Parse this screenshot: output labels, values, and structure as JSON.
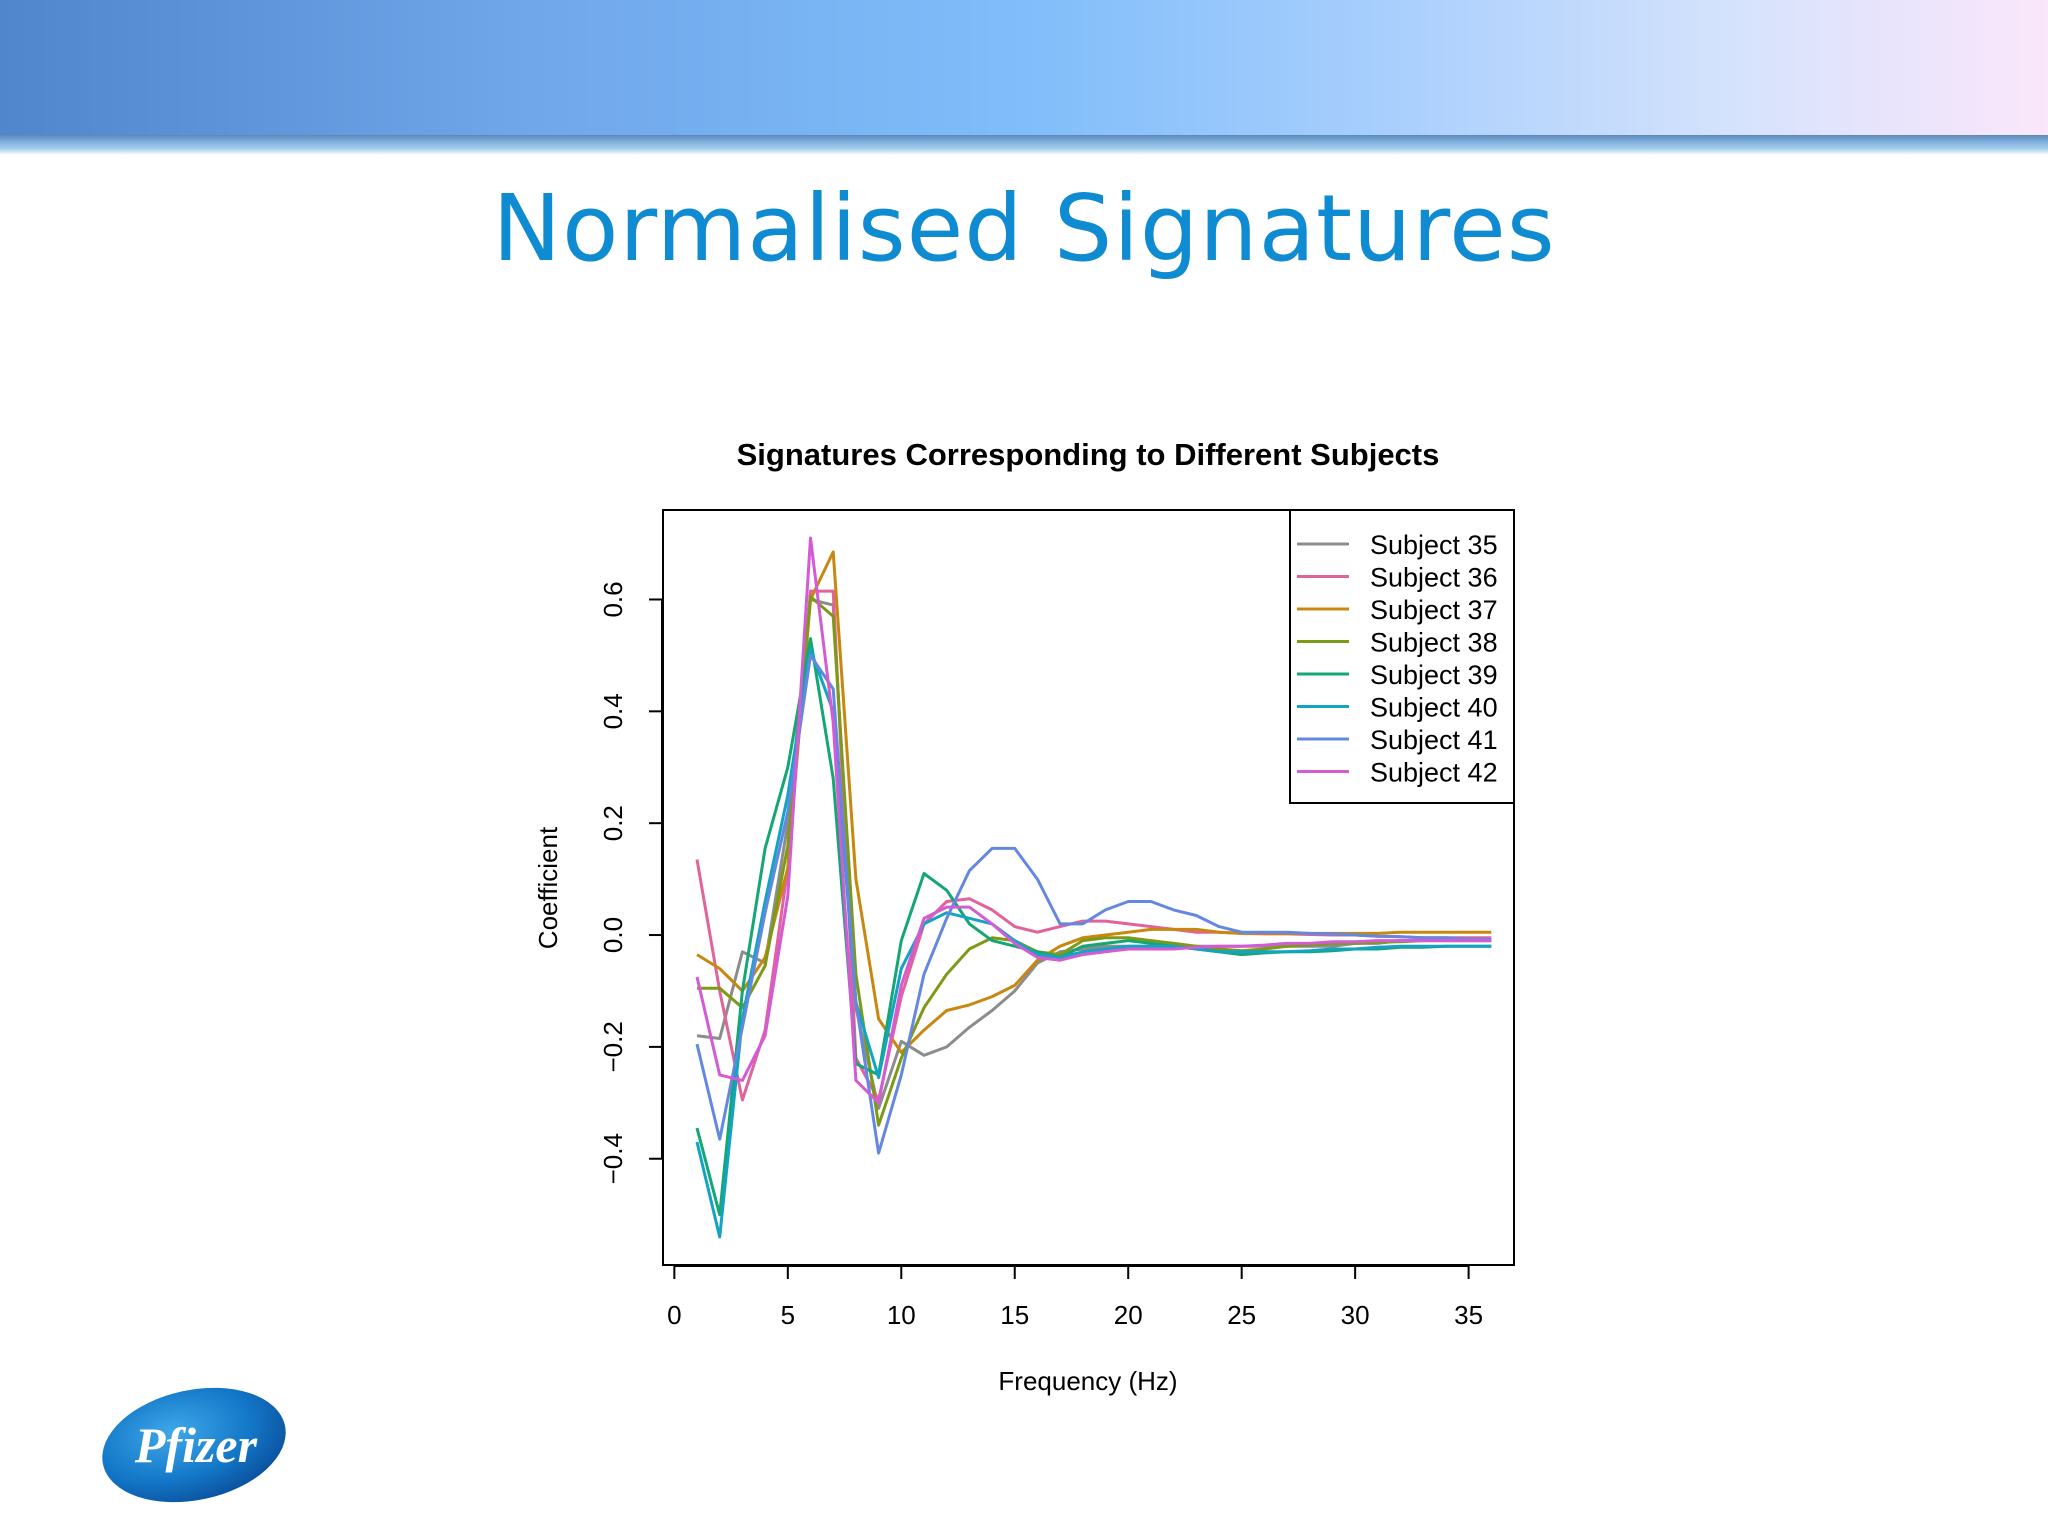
{
  "slide": {
    "title": "Normalised Signatures",
    "logo_text": "Pfizer"
  },
  "chart_data": {
    "type": "line",
    "title": "Signatures Corresponding to Different Subjects",
    "xlabel": "Frequency (Hz)",
    "ylabel": "Coefficient",
    "xlim": [
      -0.5,
      37
    ],
    "ylim": [
      -0.59,
      0.76
    ],
    "xticks": [
      "0",
      "5",
      "10",
      "15",
      "20",
      "25",
      "30",
      "35"
    ],
    "yticks": [
      "−0.4",
      "−0.2",
      "0.0",
      "0.2",
      "0.4",
      "0.6"
    ],
    "legend_position": "top-right",
    "x": [
      1,
      2,
      3,
      4,
      5,
      6,
      7,
      8,
      9,
      10,
      11,
      12,
      13,
      14,
      15,
      16,
      17,
      18,
      19,
      20,
      21,
      22,
      23,
      24,
      25,
      26,
      27,
      28,
      29,
      30,
      31,
      32,
      33,
      34,
      35,
      36
    ],
    "series": [
      {
        "name": "Subject 35",
        "color": "#8c8c8c",
        "values": [
          -0.18,
          -0.185,
          -0.03,
          -0.05,
          0.2,
          0.6,
          0.59,
          -0.13,
          -0.31,
          -0.19,
          -0.215,
          -0.2,
          -0.165,
          -0.135,
          -0.1,
          -0.05,
          -0.03,
          -0.025,
          -0.02,
          -0.02,
          -0.02,
          -0.02,
          -0.02,
          -0.02,
          -0.02,
          -0.02,
          -0.02,
          -0.02,
          -0.02,
          -0.015,
          -0.015,
          -0.01,
          -0.01,
          -0.01,
          -0.01,
          -0.01
        ]
      },
      {
        "name": "Subject 36",
        "color": "#e0639b",
        "values": [
          0.135,
          -0.1,
          -0.295,
          -0.17,
          0.12,
          0.615,
          0.615,
          -0.22,
          -0.295,
          -0.11,
          0.02,
          0.06,
          0.065,
          0.045,
          0.015,
          0.005,
          0.015,
          0.025,
          0.025,
          0.02,
          0.015,
          0.01,
          0.005,
          0.005,
          0.003,
          0.002,
          0.002,
          0.001,
          0.0,
          0.0,
          -0.002,
          -0.003,
          -0.005,
          -0.005,
          -0.005,
          -0.005
        ]
      },
      {
        "name": "Subject 37",
        "color": "#c8880f",
        "values": [
          -0.035,
          -0.06,
          -0.1,
          -0.04,
          0.12,
          0.6,
          0.685,
          0.1,
          -0.15,
          -0.21,
          -0.17,
          -0.135,
          -0.125,
          -0.11,
          -0.09,
          -0.045,
          -0.02,
          -0.005,
          0.0,
          0.005,
          0.01,
          0.01,
          0.01,
          0.005,
          0.003,
          0.003,
          0.003,
          0.003,
          0.003,
          0.003,
          0.003,
          0.005,
          0.005,
          0.005,
          0.005,
          0.005
        ]
      },
      {
        "name": "Subject 38",
        "color": "#7d9a17",
        "values": [
          -0.095,
          -0.095,
          -0.13,
          -0.055,
          0.16,
          0.605,
          0.57,
          -0.07,
          -0.34,
          -0.22,
          -0.13,
          -0.07,
          -0.025,
          -0.005,
          -0.01,
          -0.03,
          -0.035,
          -0.01,
          -0.005,
          -0.005,
          -0.01,
          -0.015,
          -0.02,
          -0.025,
          -0.028,
          -0.025,
          -0.02,
          -0.018,
          -0.015,
          -0.015,
          -0.013,
          -0.012,
          -0.01,
          -0.01,
          -0.01,
          -0.01
        ]
      },
      {
        "name": "Subject 39",
        "color": "#14a675",
        "values": [
          -0.345,
          -0.5,
          -0.1,
          0.155,
          0.3,
          0.53,
          0.28,
          -0.23,
          -0.25,
          -0.01,
          0.11,
          0.08,
          0.02,
          -0.01,
          -0.02,
          -0.03,
          -0.04,
          -0.02,
          -0.015,
          -0.01,
          -0.015,
          -0.02,
          -0.025,
          -0.03,
          -0.035,
          -0.032,
          -0.03,
          -0.03,
          -0.028,
          -0.025,
          -0.025,
          -0.022,
          -0.022,
          -0.02,
          -0.02,
          -0.02
        ]
      },
      {
        "name": "Subject 40",
        "color": "#12a4c2",
        "values": [
          -0.37,
          -0.54,
          -0.15,
          0.06,
          0.25,
          0.51,
          0.4,
          -0.12,
          -0.255,
          -0.06,
          0.02,
          0.04,
          0.03,
          0.02,
          -0.01,
          -0.035,
          -0.04,
          -0.03,
          -0.025,
          -0.02,
          -0.02,
          -0.02,
          -0.025,
          -0.03,
          -0.03,
          -0.03,
          -0.03,
          -0.028,
          -0.025,
          -0.025,
          -0.022,
          -0.02,
          -0.02,
          -0.02,
          -0.02,
          -0.02
        ]
      },
      {
        "name": "Subject 41",
        "color": "#6488e0",
        "values": [
          -0.195,
          -0.365,
          -0.165,
          0.04,
          0.22,
          0.5,
          0.44,
          -0.12,
          -0.39,
          -0.25,
          -0.07,
          0.03,
          0.115,
          0.155,
          0.155,
          0.1,
          0.02,
          0.02,
          0.045,
          0.06,
          0.06,
          0.045,
          0.035,
          0.015,
          0.005,
          0.005,
          0.005,
          0.003,
          0.002,
          0.0,
          -0.002,
          -0.003,
          -0.005,
          -0.005,
          -0.007,
          -0.008
        ]
      },
      {
        "name": "Subject 42",
        "color": "#d35bd4",
        "values": [
          -0.075,
          -0.25,
          -0.26,
          -0.18,
          0.07,
          0.71,
          0.38,
          -0.26,
          -0.3,
          -0.09,
          0.03,
          0.05,
          0.05,
          0.02,
          -0.015,
          -0.04,
          -0.045,
          -0.035,
          -0.03,
          -0.025,
          -0.025,
          -0.025,
          -0.022,
          -0.02,
          -0.02,
          -0.018,
          -0.015,
          -0.015,
          -0.012,
          -0.012,
          -0.01,
          -0.01,
          -0.01,
          -0.01,
          -0.01,
          -0.01
        ]
      }
    ]
  }
}
